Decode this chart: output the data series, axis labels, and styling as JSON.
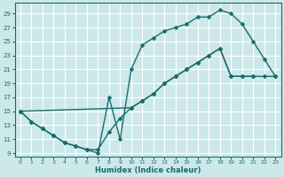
{
  "xlabel": "Humidex (Indice chaleur)",
  "bg_color": "#cde8ea",
  "grid_color": "#ffffff",
  "line_color": "#1a6b6b",
  "markersize": 2.5,
  "linewidth": 1.0,
  "xlim": [
    -0.5,
    23.5
  ],
  "ylim": [
    8.5,
    30.5
  ],
  "xticks": [
    0,
    1,
    2,
    3,
    4,
    5,
    6,
    7,
    8,
    9,
    10,
    11,
    12,
    13,
    14,
    15,
    16,
    17,
    18,
    19,
    20,
    21,
    22,
    23
  ],
  "yticks": [
    9,
    11,
    13,
    15,
    17,
    19,
    21,
    23,
    25,
    27,
    29
  ],
  "curves": [
    [
      [
        0,
        15
      ],
      [
        1,
        13.5
      ],
      [
        2,
        12.5
      ],
      [
        3,
        11.5
      ],
      [
        4,
        10.5
      ],
      [
        5,
        10
      ],
      [
        6,
        9.5
      ],
      [
        7,
        9
      ],
      [
        8,
        17
      ],
      [
        9,
        11
      ],
      [
        10,
        21
      ],
      [
        11,
        24.5
      ],
      [
        12,
        25.5
      ],
      [
        13,
        26.5
      ],
      [
        14,
        27
      ],
      [
        15,
        27.5
      ],
      [
        16,
        28.5
      ],
      [
        17,
        28.5
      ],
      [
        18,
        29.5
      ],
      [
        19,
        29
      ],
      [
        20,
        27.5
      ],
      [
        21,
        25
      ],
      [
        22,
        22.5
      ],
      [
        23,
        20
      ]
    ],
    [
      [
        0,
        15
      ],
      [
        1,
        13.5
      ],
      [
        2,
        12.5
      ],
      [
        3,
        11.5
      ],
      [
        4,
        10.5
      ],
      [
        5,
        10
      ],
      [
        6,
        9.5
      ],
      [
        7,
        9.5
      ],
      [
        8,
        12
      ],
      [
        9,
        14
      ],
      [
        10,
        15.5
      ],
      [
        11,
        16.5
      ],
      [
        12,
        17.5
      ],
      [
        13,
        19
      ],
      [
        14,
        20
      ],
      [
        15,
        21
      ],
      [
        16,
        22
      ],
      [
        17,
        23
      ],
      [
        18,
        24
      ],
      [
        19,
        20
      ],
      [
        20,
        20
      ],
      [
        21,
        20
      ]
    ],
    [
      [
        0,
        15
      ],
      [
        10,
        15.5
      ],
      [
        11,
        16.5
      ],
      [
        12,
        17.5
      ],
      [
        13,
        19
      ],
      [
        14,
        20
      ],
      [
        15,
        21
      ],
      [
        16,
        22
      ],
      [
        17,
        23
      ],
      [
        18,
        24
      ],
      [
        19,
        20
      ],
      [
        20,
        20
      ],
      [
        21,
        20
      ],
      [
        22,
        20
      ],
      [
        23,
        20
      ]
    ]
  ]
}
